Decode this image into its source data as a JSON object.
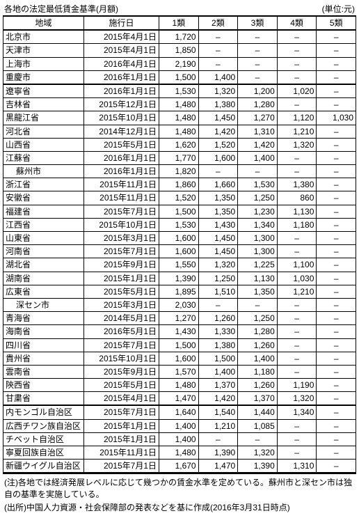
{
  "title": "各地の法定最低賃金基準(月額)",
  "unit": "(単位:元)",
  "columns": [
    "地域",
    "施行日",
    "1類",
    "2類",
    "3類",
    "4類",
    "5類"
  ],
  "groups": [
    {
      "rows": [
        {
          "region": "北京市",
          "date": "2015年4月1日",
          "vals": [
            "1,720",
            "–",
            "–",
            "–",
            "–"
          ]
        },
        {
          "region": "天津市",
          "date": "2015年4月1日",
          "vals": [
            "1,850",
            "–",
            "–",
            "–",
            "–"
          ]
        },
        {
          "region": "上海市",
          "date": "2016年4月1日",
          "vals": [
            "2,190",
            "–",
            "–",
            "–",
            "–"
          ]
        },
        {
          "region": "重慶市",
          "date": "2016年1月1日",
          "vals": [
            "1,500",
            "1,400",
            "–",
            "–",
            "–"
          ]
        }
      ]
    },
    {
      "rows": [
        {
          "region": "遼寧省",
          "date": "2016年1月1日",
          "vals": [
            "1,530",
            "1,320",
            "1,200",
            "1,020",
            "–"
          ]
        },
        {
          "region": "吉林省",
          "date": "2015年12月1日",
          "vals": [
            "1,480",
            "1,380",
            "1,280",
            "–",
            "–"
          ]
        },
        {
          "region": "黒龍江省",
          "date": "2015年10月1日",
          "vals": [
            "1,480",
            "1,450",
            "1,270",
            "1,120",
            "1,030"
          ]
        },
        {
          "region": "河北省",
          "date": "2014年12月1日",
          "vals": [
            "1,480",
            "1,420",
            "1,310",
            "1,210",
            "–"
          ]
        },
        {
          "region": "山西省",
          "date": "2015年5月1日",
          "vals": [
            "1,620",
            "1,520",
            "1,420",
            "1,320",
            "–"
          ]
        },
        {
          "region": "江蘇省",
          "date": "2016年1月1日",
          "vals": [
            "1,770",
            "1,600",
            "1,400",
            "–",
            "–"
          ]
        },
        {
          "region": "蘇州市",
          "indent": true,
          "date": "2016年1月1日",
          "vals": [
            "1,820",
            "–",
            "–",
            "–",
            "–"
          ]
        },
        {
          "region": "浙江省",
          "date": "2015年11月1日",
          "vals": [
            "1,860",
            "1,660",
            "1,530",
            "1,380",
            "–"
          ]
        },
        {
          "region": "安徽省",
          "date": "2015年11月1日",
          "vals": [
            "1,520",
            "1,350",
            "1,250",
            "860",
            "–"
          ]
        },
        {
          "region": "福建省",
          "date": "2015年7月1日",
          "vals": [
            "1,500",
            "1,350",
            "1,230",
            "1,130",
            "–"
          ]
        },
        {
          "region": "江西省",
          "date": "2015年10月1日",
          "vals": [
            "1,530",
            "1,430",
            "1,340",
            "1,180",
            "–"
          ]
        },
        {
          "region": "山東省",
          "date": "2015年3月1日",
          "vals": [
            "1,600",
            "1,450",
            "1,300",
            "–",
            "–"
          ]
        },
        {
          "region": "河南省",
          "date": "2015年7月1日",
          "vals": [
            "1,600",
            "1,450",
            "1,300",
            "–",
            "–"
          ]
        },
        {
          "region": "湖北省",
          "date": "2015年9月1日",
          "vals": [
            "1,550",
            "1,320",
            "1,225",
            "1,100",
            "–"
          ]
        },
        {
          "region": "湖南省",
          "date": "2015年1月1日",
          "vals": [
            "1,390",
            "1,250",
            "1,130",
            "1,030",
            "–"
          ]
        },
        {
          "region": "広東省",
          "date": "2015年5月1日",
          "vals": [
            "1,895",
            "1,510",
            "1,350",
            "1,210",
            "–"
          ]
        },
        {
          "region": "深セン市",
          "indent": true,
          "date": "2015年3月1日",
          "vals": [
            "2,030",
            "–",
            "–",
            "–",
            "–"
          ]
        },
        {
          "region": "青海省",
          "date": "2014年5月1日",
          "vals": [
            "1,270",
            "1,260",
            "1,250",
            "–",
            "–"
          ]
        },
        {
          "region": "海南省",
          "date": "2016年5月1日",
          "vals": [
            "1,430",
            "1,330",
            "1,280",
            "–",
            "–"
          ]
        },
        {
          "region": "四川省",
          "date": "2015年7月1日",
          "vals": [
            "1,500",
            "1,380",
            "1,260",
            "–",
            "–"
          ]
        },
        {
          "region": "貴州省",
          "date": "2015年10月1日",
          "vals": [
            "1,600",
            "1,500",
            "1,400",
            "–",
            "–"
          ]
        },
        {
          "region": "雲南省",
          "date": "2015年9月1日",
          "vals": [
            "1,570",
            "1,400",
            "1,180",
            "–",
            "–"
          ]
        },
        {
          "region": "陝西省",
          "date": "2015年5月1日",
          "vals": [
            "1,480",
            "1,370",
            "1,260",
            "1,190",
            "–"
          ]
        },
        {
          "region": "甘粛省",
          "date": "2015年4月1日",
          "vals": [
            "1,470",
            "1,420",
            "1,370",
            "1,320",
            "–"
          ]
        }
      ]
    },
    {
      "rows": [
        {
          "region": "内モンゴル自治区",
          "date": "2015年7月1日",
          "vals": [
            "1,640",
            "1,540",
            "1,440",
            "1,340",
            "–"
          ]
        },
        {
          "region": "広西チワン族自治区",
          "date": "2015年1月1日",
          "vals": [
            "1,400",
            "1,210",
            "1,085",
            "–",
            "–"
          ]
        },
        {
          "region": "チベット自治区",
          "date": "2015年1月1日",
          "vals": [
            "1,400",
            "–",
            "–",
            "–",
            "–"
          ]
        },
        {
          "region": "寧夏回族自治区",
          "date": "2015年11月1日",
          "vals": [
            "1,480",
            "1,390",
            "1,320",
            "–",
            "–"
          ]
        },
        {
          "region": "新疆ウイグル自治区",
          "date": "2015年7月1日",
          "vals": [
            "1,670",
            "1,470",
            "1,390",
            "1,310",
            "–"
          ]
        }
      ]
    }
  ],
  "footnotes": [
    "(注)各地では経済発展レベルに応じて幾つかの賃金水準を定めている。蘇州市と深セン市は独自の基準を実施している。",
    "(出所)中国人力資源・社会保障部の発表などを基に作成(2016年3月31日時点)"
  ]
}
